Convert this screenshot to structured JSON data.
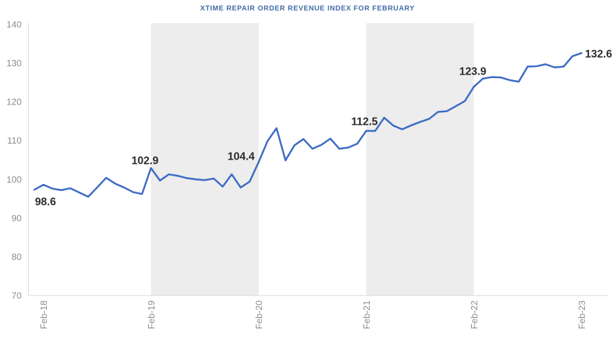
{
  "title": "XTIME REPAIR ORDER REVENUE INDEX FOR FEBRUARY",
  "colors": {
    "line": "#3e6cc5",
    "title_text": "#3e6da6",
    "band": "#ededed",
    "axis_line": "#d9d9d9",
    "tick_text": "#8c8c8c",
    "data_label": "#2b2b2b"
  },
  "chart_data": {
    "type": "line",
    "title": "XTIME REPAIR ORDER REVENUE INDEX FOR FEBRUARY",
    "x_start_month": "Jan-18",
    "x_frequency": "monthly",
    "ylim": [
      70,
      140
    ],
    "y_ticks": [
      70,
      80,
      90,
      100,
      110,
      120,
      130,
      140
    ],
    "x_ticks": [
      {
        "index": 1,
        "label": "Feb-18"
      },
      {
        "index": 13,
        "label": "Feb-19"
      },
      {
        "index": 25,
        "label": "Feb-20"
      },
      {
        "index": 37,
        "label": "Feb-21"
      },
      {
        "index": 49,
        "label": "Feb-22"
      },
      {
        "index": 61,
        "label": "Feb-23"
      }
    ],
    "grid": false,
    "legend": false,
    "shaded_bands": [
      {
        "from": "Feb-19",
        "to": "Feb-20",
        "from_index": 13,
        "to_index": 25
      },
      {
        "from": "Feb-21",
        "to": "Feb-22",
        "from_index": 37,
        "to_index": 49
      }
    ],
    "series": [
      {
        "name": "Repair Order Revenue Index",
        "values": [
          97.3,
          98.6,
          97.6,
          97.2,
          97.7,
          96.6,
          95.5,
          97.9,
          100.4,
          98.9,
          97.9,
          96.7,
          96.2,
          102.9,
          99.7,
          101.3,
          100.9,
          100.3,
          100.0,
          99.8,
          100.2,
          98.1,
          101.3,
          97.9,
          99.4,
          104.4,
          109.9,
          113.2,
          104.9,
          108.8,
          110.4,
          107.9,
          108.9,
          110.5,
          107.9,
          108.2,
          109.2,
          112.5,
          112.5,
          115.9,
          113.9,
          112.9,
          113.9,
          114.8,
          115.6,
          117.4,
          117.6,
          118.9,
          120.2,
          123.9,
          126.0,
          126.4,
          126.3,
          125.6,
          125.2,
          129.1,
          129.2,
          129.7,
          128.9,
          129.1,
          131.8,
          132.6
        ]
      }
    ],
    "point_labels": [
      {
        "index": 1,
        "text": "98.6"
      },
      {
        "index": 13,
        "text": "102.9"
      },
      {
        "index": 25,
        "text": "104.4"
      },
      {
        "index": 37,
        "text": "112.5"
      },
      {
        "index": 49,
        "text": "123.9"
      },
      {
        "index": 61,
        "text": "132.6"
      }
    ]
  }
}
